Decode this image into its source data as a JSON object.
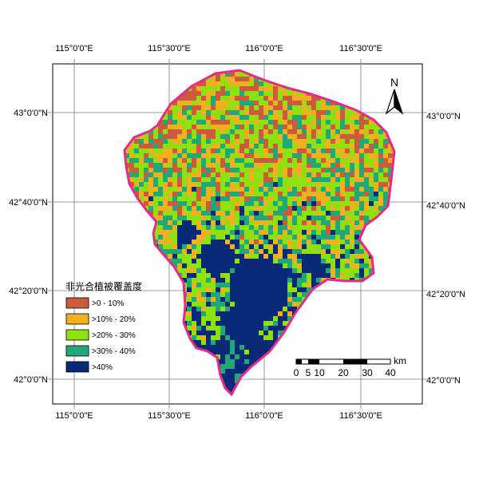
{
  "map": {
    "top_lon_labels": [
      "115°0'0\"E",
      "115°30'0\"E",
      "116°0'0\"E",
      "116°30'0\"E"
    ],
    "bottom_lon_labels": [
      "115°0'0\"E",
      "115°30'0\"E",
      "116°0'0\"E",
      "116°30'0\"E"
    ],
    "left_lat_labels": [
      "43°0'0\"N",
      "42°40'0\"N",
      "42°20'0\"N",
      "42°0'0\"N"
    ],
    "right_lat_labels": [
      "43°0'0\"N",
      "42°40'0\"N",
      "42°20'0\"N",
      "42°0'0\"N"
    ],
    "north_label": "N",
    "boundary_color": "#e8288c",
    "legend": {
      "title": "非光合植被覆盖度",
      "items": [
        {
          "label": ">0 - 10%",
          "color": "#cc5a3c"
        },
        {
          "label": ">10% - 20%",
          "color": "#f0b020"
        },
        {
          "label": ">20% - 30%",
          "color": "#8ee010"
        },
        {
          "label": ">30% - 40%",
          "color": "#20a878"
        },
        {
          "label": ">40%",
          "color": "#0a2a78"
        }
      ]
    },
    "scale_bar": {
      "unit": "km",
      "ticks": [
        "0",
        "5",
        "10",
        "20",
        "30",
        "40"
      ]
    }
  }
}
